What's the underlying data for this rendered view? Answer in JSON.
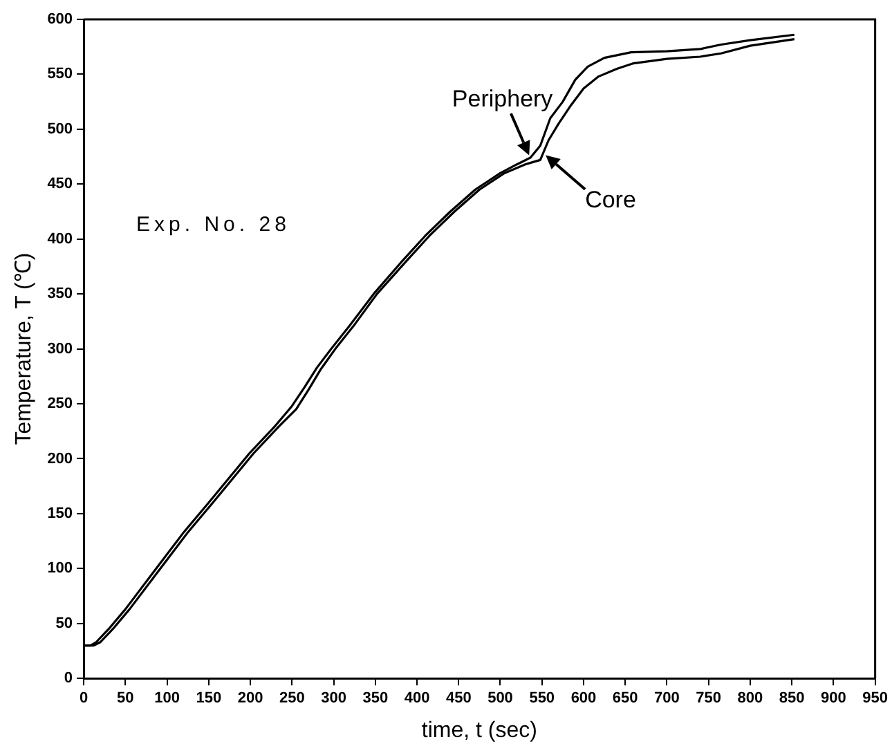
{
  "chart_data": {
    "type": "line",
    "xlabel": "time, t (sec)",
    "ylabel": "Temperature, T (℃)",
    "xlim": [
      0,
      950
    ],
    "xticks": [
      0,
      50,
      100,
      150,
      200,
      250,
      300,
      350,
      400,
      450,
      500,
      550,
      600,
      650,
      700,
      750,
      800,
      850,
      900,
      950
    ],
    "ylim": [
      0,
      600
    ],
    "yticks": [
      0,
      50,
      100,
      150,
      200,
      250,
      300,
      350,
      400,
      450,
      500,
      550,
      600
    ],
    "grid": false,
    "legend": false,
    "marker": "none",
    "line_style": "solid",
    "annotations": [
      "Exp. No. 28",
      {
        "text": "Periphery",
        "x": 536,
        "y": 474
      },
      {
        "text": "Core",
        "x": 552,
        "y": 478
      }
    ],
    "series": [
      {
        "color": "#000000",
        "x": [
          0,
          8,
          15,
          30,
          50,
          87,
          120,
          150,
          199,
          230,
          250,
          265,
          280,
          297,
          320,
          348,
          380,
          410,
          440,
          470,
          500,
          520,
          536,
          548,
          560,
          575,
          590,
          605,
          625,
          657,
          700,
          740,
          765,
          800,
          853
        ],
        "values": [
          30,
          30,
          33,
          45,
          63,
          100,
          133,
          160,
          205,
          230,
          248,
          265,
          283,
          300,
          322,
          350,
          378,
          403,
          425,
          445,
          460,
          468,
          474,
          485,
          510,
          525,
          545,
          557,
          565,
          570,
          571,
          573,
          577,
          581,
          586
        ]
      },
      {
        "color": "#000000",
        "x": [
          0,
          12,
          20,
          35,
          55,
          92,
          125,
          155,
          204,
          235,
          255,
          270,
          285,
          302,
          325,
          352,
          385,
          415,
          445,
          475,
          505,
          530,
          548,
          558,
          570,
          585,
          600,
          618,
          640,
          660,
          700,
          740,
          765,
          800,
          853
        ],
        "values": [
          30,
          30,
          33,
          45,
          63,
          100,
          133,
          160,
          205,
          230,
          245,
          263,
          282,
          300,
          322,
          350,
          378,
          403,
          425,
          445,
          460,
          468,
          472,
          490,
          505,
          522,
          537,
          548,
          555,
          560,
          564,
          566,
          569,
          576,
          582
        ]
      }
    ]
  }
}
